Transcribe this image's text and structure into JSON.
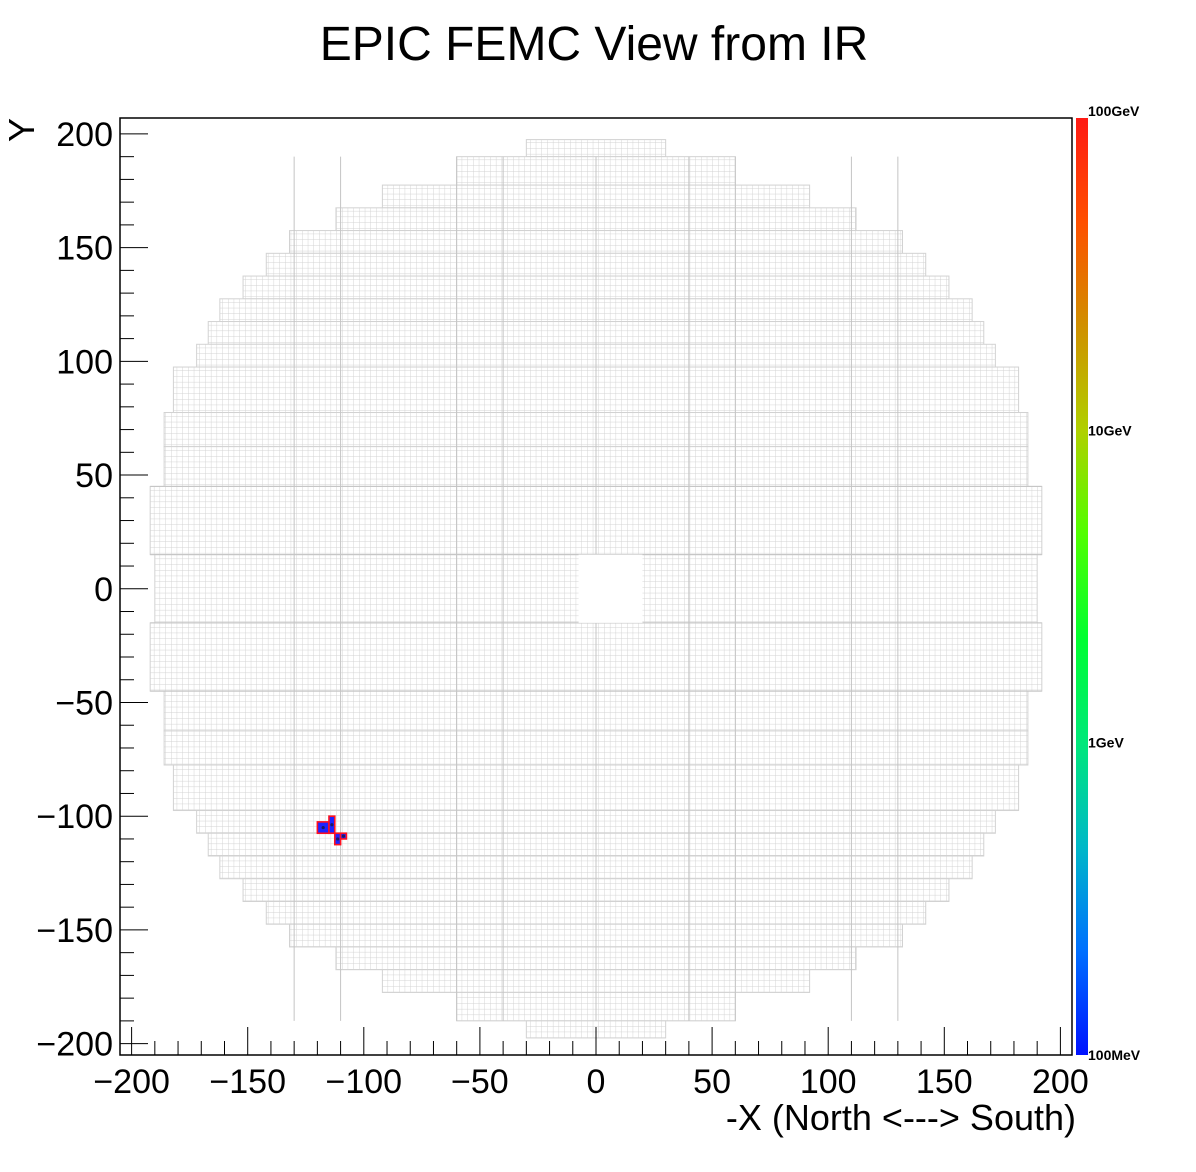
{
  "chart_data": {
    "type": "heatmap",
    "title": "EPIC FEMC View from IR",
    "xlabel": "-X (North <---> South)",
    "ylabel": "Y",
    "xlim": [
      -205,
      205
    ],
    "ylim": [
      -205,
      207
    ],
    "x_ticks": [
      {
        "value": -200,
        "label": "−200"
      },
      {
        "value": -150,
        "label": "−150"
      },
      {
        "value": -100,
        "label": "−100"
      },
      {
        "value": -50,
        "label": "−50"
      },
      {
        "value": 0,
        "label": "0"
      },
      {
        "value": 50,
        "label": "50"
      },
      {
        "value": 100,
        "label": "100"
      },
      {
        "value": 150,
        "label": "150"
      },
      {
        "value": 200,
        "label": "200"
      }
    ],
    "y_ticks": [
      {
        "value": 200,
        "label": "200"
      },
      {
        "value": 150,
        "label": "150"
      },
      {
        "value": 100,
        "label": "100"
      },
      {
        "value": 50,
        "label": "50"
      },
      {
        "value": 0,
        "label": "0"
      },
      {
        "value": -50,
        "label": "−50"
      },
      {
        "value": -100,
        "label": "−100"
      },
      {
        "value": -150,
        "label": "−150"
      },
      {
        "value": -200,
        "label": "−200"
      }
    ],
    "detector_outline": {
      "cell_size": 2.5,
      "rows": [
        {
          "y": [
            190,
            197.5
          ],
          "x": [
            -30,
            30
          ]
        },
        {
          "y": [
            177.5,
            190
          ],
          "x": [
            -60,
            60
          ]
        },
        {
          "y": [
            167.5,
            177.5
          ],
          "x": [
            -92,
            92
          ]
        },
        {
          "y": [
            157.5,
            167.5
          ],
          "x": [
            -112,
            112
          ]
        },
        {
          "y": [
            147.5,
            157.5
          ],
          "x": [
            -132,
            132
          ]
        },
        {
          "y": [
            137.5,
            147.5
          ],
          "x": [
            -142,
            142
          ]
        },
        {
          "y": [
            127.5,
            137.5
          ],
          "x": [
            -152,
            152
          ]
        },
        {
          "y": [
            117.5,
            127.5
          ],
          "x": [
            -162,
            162
          ]
        },
        {
          "y": [
            107.5,
            117.5
          ],
          "x": [
            -167,
            167
          ]
        },
        {
          "y": [
            97.5,
            107.5
          ],
          "x": [
            -172,
            172
          ]
        },
        {
          "y": [
            77.5,
            97.5
          ],
          "x": [
            -182,
            182
          ]
        },
        {
          "y": [
            62.5,
            77.5
          ],
          "x": [
            -186,
            186
          ]
        },
        {
          "y": [
            45,
            62.5
          ],
          "x": [
            -186,
            186
          ]
        },
        {
          "y": [
            15,
            45
          ],
          "x": [
            -192,
            192
          ]
        },
        {
          "y": [
            -15,
            15
          ],
          "x": [
            -190,
            190
          ]
        },
        {
          "y": [
            -45,
            -15
          ],
          "x": [
            -192,
            192
          ]
        },
        {
          "y": [
            -62.5,
            -45
          ],
          "x": [
            -186,
            186
          ]
        },
        {
          "y": [
            -77.5,
            -62.5
          ],
          "x": [
            -186,
            186
          ]
        },
        {
          "y": [
            -97.5,
            -77.5
          ],
          "x": [
            -182,
            182
          ]
        },
        {
          "y": [
            -107.5,
            -97.5
          ],
          "x": [
            -172,
            172
          ]
        },
        {
          "y": [
            -117.5,
            -107.5
          ],
          "x": [
            -167,
            167
          ]
        },
        {
          "y": [
            -127.5,
            -117.5
          ],
          "x": [
            -162,
            162
          ]
        },
        {
          "y": [
            -137.5,
            -127.5
          ],
          "x": [
            -152,
            152
          ]
        },
        {
          "y": [
            -147.5,
            -137.5
          ],
          "x": [
            -142,
            142
          ]
        },
        {
          "y": [
            -157.5,
            -147.5
          ],
          "x": [
            -132,
            132
          ]
        },
        {
          "y": [
            -167.5,
            -157.5
          ],
          "x": [
            -112,
            112
          ]
        },
        {
          "y": [
            -177.5,
            -167.5
          ],
          "x": [
            -92,
            92
          ]
        },
        {
          "y": [
            -190,
            -177.5
          ],
          "x": [
            -60,
            60
          ]
        },
        {
          "y": [
            -197.5,
            -190
          ],
          "x": [
            -30,
            30
          ]
        }
      ],
      "beam_hole": {
        "x": [
          -7.5,
          20
        ],
        "y": [
          -15,
          15
        ]
      }
    },
    "hits": [
      {
        "x": -120,
        "y": -107.5,
        "w": 5,
        "h": 5
      },
      {
        "x": -115,
        "y": -107.5,
        "w": 2.5,
        "h": 7.5
      },
      {
        "x": -112.5,
        "y": -112.5,
        "w": 2.5,
        "h": 5
      },
      {
        "x": -110,
        "y": -110,
        "w": 2.5,
        "h": 2.5
      }
    ],
    "hit_colors": {
      "fill": "#1e23ff",
      "border": "#ff1020",
      "dot": "#1a1a66"
    },
    "grid_color": "#d2d2d2",
    "colorbar": {
      "scale": "log",
      "labels": [
        {
          "value": "100GeV",
          "frac": 1.0
        },
        {
          "value": "10GeV",
          "frac": 0.6667
        },
        {
          "value": "1GeV",
          "frac": 0.3333
        },
        {
          "value": "100MeV",
          "frac": 0.0
        }
      ],
      "colors": [
        "#0012ff",
        "#0070ff",
        "#00b8c8",
        "#00e87a",
        "#00ff30",
        "#50ff00",
        "#b0d000",
        "#d09000",
        "#ff5000",
        "#ff1a14"
      ]
    }
  }
}
